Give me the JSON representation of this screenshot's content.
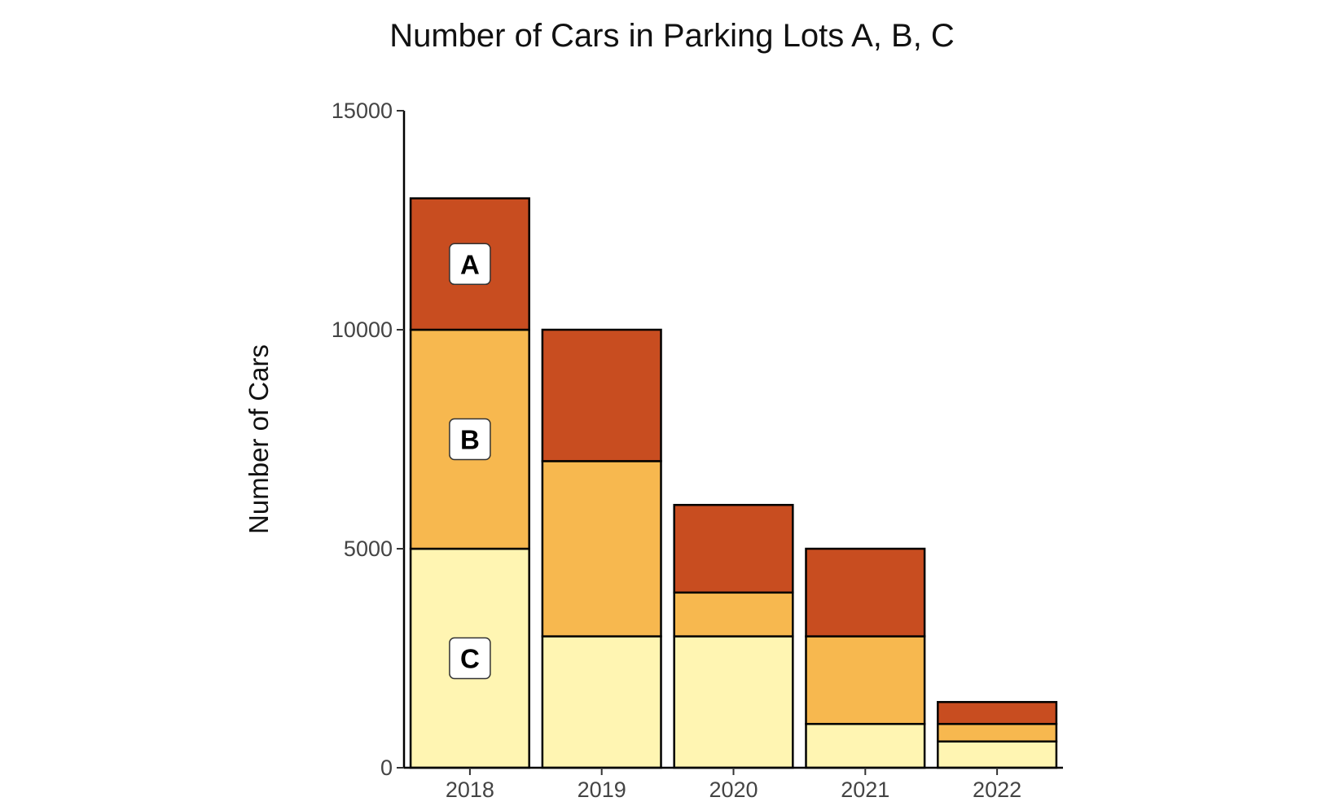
{
  "chart_data": {
    "type": "bar",
    "stacked": true,
    "title": "Number of Cars in Parking Lots A, B, C",
    "xlabel": "",
    "ylabel": "Number of Cars",
    "categories": [
      "2018",
      "2019",
      "2020",
      "2021",
      "2022"
    ],
    "series": [
      {
        "name": "C",
        "values": [
          5000,
          3000,
          3000,
          1000,
          600
        ],
        "color": "#FFF5B2"
      },
      {
        "name": "B",
        "values": [
          5000,
          4000,
          1000,
          2000,
          400
        ],
        "color": "#F7B84F"
      },
      {
        "name": "A",
        "values": [
          3000,
          3000,
          2000,
          2000,
          500
        ],
        "color": "#C84D20"
      }
    ],
    "ylim": [
      0,
      15000
    ],
    "yticks": [
      "0",
      "5000",
      "10000",
      "15000"
    ],
    "grid": false,
    "legend": "labels inside first bar"
  }
}
